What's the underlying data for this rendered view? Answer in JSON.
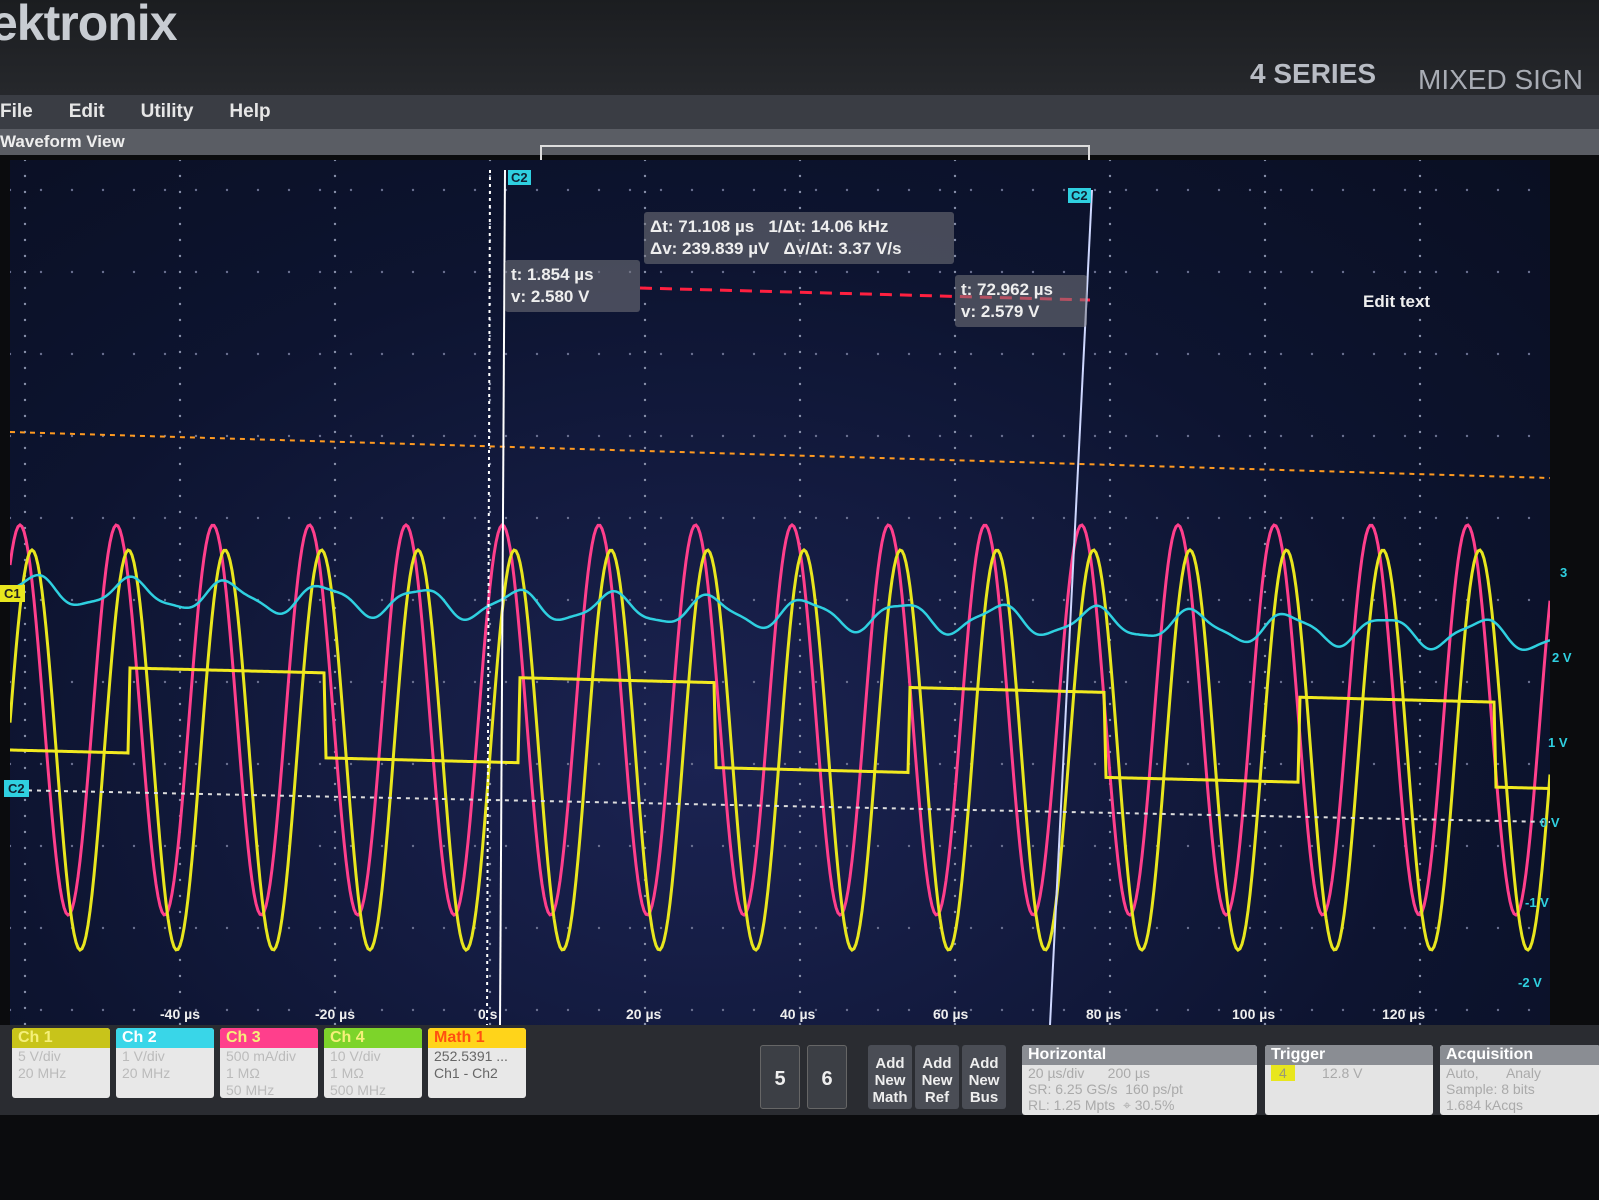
{
  "header": {
    "logo": "ektronix",
    "series": "4 SERIES",
    "subtitle": "MIXED SIGN"
  },
  "menu": [
    "File",
    "Edit",
    "Utility",
    "Help"
  ],
  "view_title": "Waveform View",
  "cursors": {
    "left": {
      "t": "t: 1.854 µs",
      "v": "v: 2.580 V",
      "label": "C2"
    },
    "right": {
      "t": "t: 72.962 µs",
      "v": "v: 2.579 V",
      "label": "C2"
    },
    "delta": {
      "dt": "Δt: 71.108 µs",
      "inv_dt": "1/Δt: 14.06 kHz",
      "dv": "Δv: 239.839 µV",
      "dv_dt": "Δv/Δt: 3.37 V/s"
    }
  },
  "edit_text": "Edit text",
  "channel_markers": {
    "c1": "C1",
    "c2": "C2"
  },
  "x_ticks": [
    "-40 µs",
    "-20 µs",
    "0 s",
    "20 µs",
    "40 µs",
    "60 µs",
    "80 µs",
    "100 µs",
    "120 µs"
  ],
  "y_ticks": [
    "3",
    "2 V",
    "1 V",
    "0 V",
    "-1 V",
    "-2 V"
  ],
  "channels": [
    {
      "name": "Ch 1",
      "color": "#c8c41a",
      "lines": [
        "5 V/div",
        "",
        "20 MHz"
      ]
    },
    {
      "name": "Ch 2",
      "color": "#39d6e8",
      "lines": [
        "1 V/div",
        "",
        "20 MHz"
      ]
    },
    {
      "name": "Ch 3",
      "color": "#ff3f8c",
      "lines": [
        "500 mA/div",
        "1 MΩ",
        "50 MHz"
      ]
    },
    {
      "name": "Ch 4",
      "color": "#7dd42a",
      "lines": [
        "10 V/div",
        "1 MΩ",
        "500 MHz"
      ]
    },
    {
      "name": "Math 1",
      "color": "#ffd41a",
      "lines": [
        "252.5391 ...",
        "Ch1 - Ch2",
        ""
      ]
    }
  ],
  "buttons": {
    "b5": "5",
    "b6": "6",
    "add_math": "Add New Math",
    "add_ref": "Add New Ref",
    "add_bus": "Add New Bus"
  },
  "horizontal": {
    "title": "Horizontal",
    "scale": "20 µs/div",
    "duration": "200 µs",
    "sr": "SR: 6.25 GS/s",
    "pt": "160 ps/pt",
    "rl": "RL: 1.25 Mpts",
    "pos": "⌖ 30.5%"
  },
  "trigger": {
    "title": "Trigger",
    "source": "4",
    "level": "12.8 V"
  },
  "acquisition": {
    "title": "Acquisition",
    "mode": "Auto,",
    "analysis": "Analy",
    "sample": "Sample: 8 bits",
    "acqs": "1.684 kAcqs"
  },
  "colors": {
    "ch1": "#e8e61e",
    "ch2": "#2fd0e0",
    "ch3": "#ff3f8c",
    "ch4": "#7dd42a",
    "cursor_line": "#ff2040",
    "trigger_level": "#ff9a20"
  }
}
